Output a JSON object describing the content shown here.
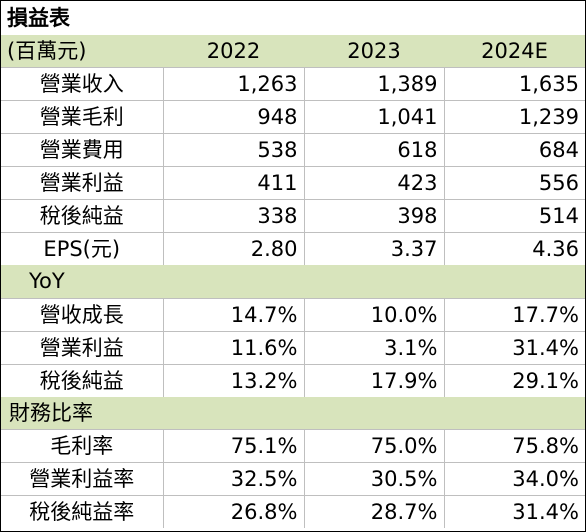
{
  "title": "損益表",
  "header": {
    "unit": "(百萬元)",
    "years": [
      "2022",
      "2023",
      "2024E"
    ]
  },
  "income_rows": [
    {
      "label": "營業收入",
      "values": [
        "1,263",
        "1,389",
        "1,635"
      ]
    },
    {
      "label": "營業毛利",
      "values": [
        "948",
        "1,041",
        "1,239"
      ]
    },
    {
      "label": "營業費用",
      "values": [
        "538",
        "618",
        "684"
      ]
    },
    {
      "label": "營業利益",
      "values": [
        "411",
        "423",
        "556"
      ]
    },
    {
      "label": "稅後純益",
      "values": [
        "338",
        "398",
        "514"
      ]
    },
    {
      "label": "EPS(元)",
      "values": [
        "2.80",
        "3.37",
        "4.36"
      ]
    }
  ],
  "yoy_section": "YoY",
  "yoy_rows": [
    {
      "label": "營收成長",
      "values": [
        "14.7%",
        "10.0%",
        "17.7%"
      ]
    },
    {
      "label": "營業利益",
      "values": [
        "11.6%",
        "3.1%",
        "31.4%"
      ]
    },
    {
      "label": "稅後純益",
      "values": [
        "13.2%",
        "17.9%",
        "29.1%"
      ]
    }
  ],
  "ratio_section": "財務比率",
  "ratio_rows": [
    {
      "label": "毛利率",
      "values": [
        "75.1%",
        "75.0%",
        "75.8%"
      ]
    },
    {
      "label": "營業利益率",
      "values": [
        "32.5%",
        "30.5%",
        "34.0%"
      ]
    },
    {
      "label": "稅後純益率",
      "values": [
        "26.8%",
        "28.7%",
        "31.4%"
      ]
    }
  ],
  "colors": {
    "header_fill": "#d8e4bc",
    "grid": "#bfbfbf"
  }
}
